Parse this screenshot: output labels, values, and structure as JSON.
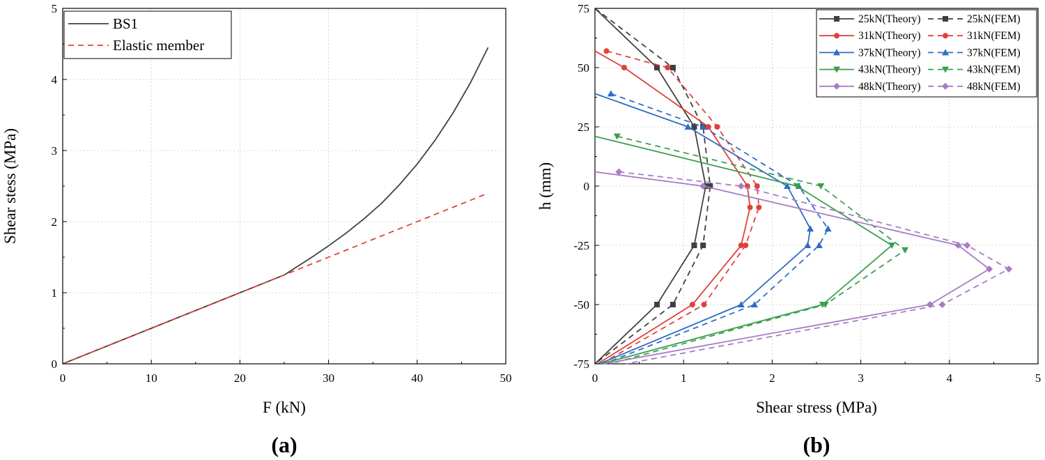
{
  "chart_data": [
    {
      "type": "line",
      "panel_label": "(a)",
      "title": "",
      "xlabel": "F (kN)",
      "ylabel": "Shear stess (MPa)",
      "xlim": [
        0,
        50
      ],
      "ylim": [
        0,
        5
      ],
      "xticks": [
        "0",
        "10",
        "20",
        "30",
        "40",
        "50"
      ],
      "yticks": [
        "0",
        "1",
        "2",
        "3",
        "4",
        "5"
      ],
      "grid": true,
      "legend_position": "top-left",
      "series": [
        {
          "name": "BS1",
          "color": "#404040",
          "dash": "solid",
          "x": [
            0,
            5,
            10,
            15,
            20,
            25,
            28,
            30,
            32,
            34,
            36,
            38,
            40,
            42,
            44,
            46,
            48
          ],
          "y": [
            0,
            0.25,
            0.5,
            0.75,
            1.0,
            1.25,
            1.49,
            1.66,
            1.84,
            2.04,
            2.26,
            2.52,
            2.81,
            3.14,
            3.52,
            3.95,
            4.45
          ]
        },
        {
          "name": "Elastic member",
          "color": "#e0413a",
          "dash": "dashed",
          "x": [
            0,
            48
          ],
          "y": [
            0,
            2.4
          ]
        }
      ]
    },
    {
      "type": "line",
      "panel_label": "(b)",
      "title": "",
      "xlabel": "Shear stress (MPa)",
      "ylabel": "h (mm)",
      "xlim": [
        0,
        5
      ],
      "ylim": [
        -75,
        75
      ],
      "xticks": [
        "0",
        "1",
        "2",
        "3",
        "4",
        "5"
      ],
      "yticks": [
        "-75",
        "-50",
        "-25",
        "0",
        "25",
        "50",
        "75"
      ],
      "grid": true,
      "legend_position": "top-right",
      "series": [
        {
          "name": "25kN(Theory)",
          "color": "#404040",
          "dash": "solid",
          "marker": "square",
          "x": [
            0,
            0.7,
            1.12,
            1.25,
            1.12,
            0.7,
            0
          ],
          "y": [
            75,
            50,
            25,
            0,
            -25,
            -50,
            -75
          ]
        },
        {
          "name": "25kN(FEM)",
          "color": "#404040",
          "dash": "dashed",
          "marker": "square",
          "x": [
            0,
            0.88,
            1.22,
            1.3,
            1.22,
            0.88,
            0
          ],
          "y": [
            75,
            50,
            25,
            0,
            -25,
            -50,
            -75
          ]
        },
        {
          "name": "31kN(Theory)",
          "color": "#e0413a",
          "dash": "solid",
          "marker": "circle",
          "x": [
            0,
            0.33,
            1.28,
            1.72,
            1.75,
            1.65,
            1.1,
            0.03
          ],
          "y": [
            57,
            50,
            25,
            0,
            -9,
            -25,
            -50,
            -75
          ]
        },
        {
          "name": "31kN(FEM)",
          "color": "#e0413a",
          "dash": "dashed",
          "marker": "circle",
          "x": [
            0.13,
            0.82,
            1.38,
            1.83,
            1.85,
            1.7,
            1.23,
            0.07
          ],
          "y": [
            57,
            50,
            25,
            0,
            -9,
            -25,
            -50,
            -75
          ]
        },
        {
          "name": "37kN(Theory)",
          "color": "#2f6cc4",
          "dash": "solid",
          "marker": "triangle",
          "x": [
            0,
            1.05,
            2.17,
            2.43,
            2.4,
            1.65,
            0.05
          ],
          "y": [
            39,
            25,
            0,
            -18,
            -25,
            -50,
            -75
          ]
        },
        {
          "name": "37kN(FEM)",
          "color": "#2f6cc4",
          "dash": "dashed",
          "marker": "triangle",
          "x": [
            0.18,
            1.22,
            2.3,
            2.63,
            2.53,
            1.8,
            0.1
          ],
          "y": [
            39,
            25,
            0,
            -18,
            -25,
            -50,
            -75
          ]
        },
        {
          "name": "43kN(Theory)",
          "color": "#3a9f4e",
          "dash": "solid",
          "marker": "triangle-down",
          "x": [
            0,
            2.28,
            3.35,
            2.57,
            0.07
          ],
          "y": [
            21,
            0,
            -25,
            -50,
            -75
          ]
        },
        {
          "name": "43kN(FEM)",
          "color": "#3a9f4e",
          "dash": "dashed",
          "marker": "triangle-down",
          "x": [
            0.25,
            2.55,
            3.5,
            2.6,
            0.17
          ],
          "y": [
            21,
            0,
            -27,
            -50,
            -75
          ]
        },
        {
          "name": "48kN(Theory)",
          "color": "#a77cc4",
          "dash": "solid",
          "marker": "diamond",
          "x": [
            0,
            1.22,
            4.1,
            4.45,
            3.78,
            0.1
          ],
          "y": [
            6,
            0,
            -25,
            -35,
            -50,
            -75
          ]
        },
        {
          "name": "48kN(FEM)",
          "color": "#a77cc4",
          "dash": "dashed",
          "marker": "diamond",
          "x": [
            0.27,
            1.65,
            4.2,
            4.67,
            3.92,
            0.35
          ],
          "y": [
            6,
            0,
            -25,
            -35,
            -50,
            -75
          ]
        }
      ]
    }
  ]
}
